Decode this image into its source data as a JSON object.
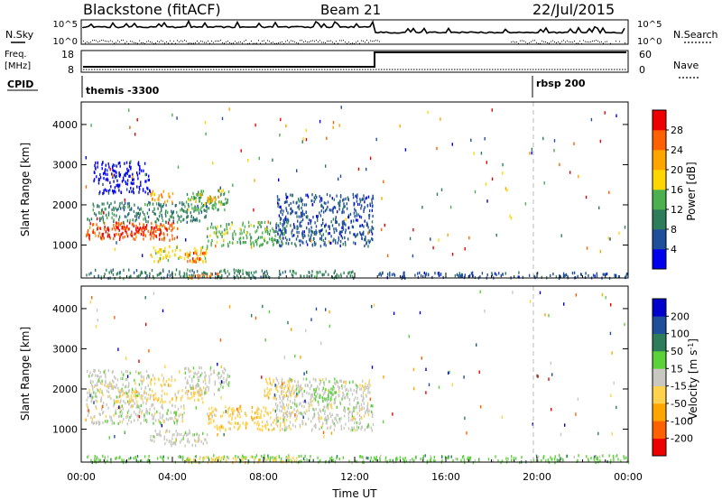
{
  "header": {
    "station": "Blackstone (fitACF)",
    "beam": "Beam 21",
    "date": "22/Jul/2015"
  },
  "panels": {
    "nsky_label": "N.Sky",
    "nsky_ticks": [
      "10^5",
      "10^0"
    ],
    "nsearch_label": "N.Search",
    "nsearch_ticks": [
      "10^5",
      "10^0"
    ],
    "freq_label_line1": "Freq.",
    "freq_label_line2": "[MHz]",
    "freq_ticks": [
      "18",
      "8"
    ],
    "nave_label": "Nave",
    "nave_ticks": [
      "60",
      "0"
    ],
    "cpid_label": "CPID",
    "cpid_modes": [
      {
        "name": "themis -3300",
        "start_hour": 0
      },
      {
        "name": "rbsp 200",
        "start_hour": 20
      }
    ]
  },
  "colors": {
    "power_scale": [
      "#0000ee",
      "#1f4e9a",
      "#2e7d5a",
      "#4caf50",
      "#ffd700",
      "#ffa500",
      "#ff6000",
      "#ee0000"
    ],
    "velocity_scale": [
      "#ee0000",
      "#ff6000",
      "#ffa500",
      "#ffd24d",
      "#c8c8c0",
      "#5bd13a",
      "#2e7d5a",
      "#1f4e9a",
      "#0000cc"
    ]
  },
  "chart_data": [
    {
      "type": "heatmap",
      "name": "power",
      "xlabel": "",
      "ylabel": "Slant Range [km]",
      "x_range_hours": [
        0,
        24
      ],
      "y_range_km": [
        180,
        4560
      ],
      "yticks": [
        1000,
        2000,
        3000,
        4000
      ],
      "colorbar_label": "Power [dB]",
      "colorbar_ticks": [
        "4",
        "8",
        "12",
        "16",
        "20",
        "24",
        "28"
      ],
      "regions": [
        {
          "t0": 0.2,
          "t1": 4.2,
          "r0": 1150,
          "r1": 1600,
          "level": 6
        },
        {
          "t0": 0.8,
          "t1": 3.8,
          "r0": 1250,
          "r1": 1500,
          "level": 7
        },
        {
          "t0": 0.2,
          "t1": 5.5,
          "r0": 1600,
          "r1": 2100,
          "level": 2
        },
        {
          "t0": 3.0,
          "t1": 4.0,
          "r0": 2100,
          "r1": 2400,
          "level": 5
        },
        {
          "t0": 4.5,
          "t1": 6.5,
          "r0": 1900,
          "r1": 2400,
          "level": 3
        },
        {
          "t0": 5.0,
          "t1": 6.0,
          "r0": 2100,
          "r1": 2300,
          "level": 5
        },
        {
          "t0": 5.5,
          "t1": 9.0,
          "r0": 1000,
          "r1": 1600,
          "level": 3
        },
        {
          "t0": 3.0,
          "t1": 5.5,
          "r0": 600,
          "r1": 1000,
          "level": 4
        },
        {
          "t0": 4.5,
          "t1": 5.5,
          "r0": 600,
          "r1": 850,
          "level": 6
        },
        {
          "t0": 8.5,
          "t1": 12.8,
          "r0": 1000,
          "r1": 2300,
          "level": 1
        },
        {
          "t0": 0.5,
          "t1": 3.0,
          "r0": 2300,
          "r1": 3100,
          "level": 0
        },
        {
          "t0": 0.2,
          "t1": 12.0,
          "r0": 200,
          "r1": 420,
          "level": 2
        },
        {
          "t0": 4.5,
          "t1": 6.0,
          "r0": 200,
          "r1": 320,
          "level": 6
        },
        {
          "t0": 13.0,
          "t1": 24.0,
          "r0": 200,
          "r1": 350,
          "level": 1
        }
      ]
    },
    {
      "type": "heatmap",
      "name": "velocity",
      "xlabel": "Time UT",
      "ylabel": "Slant Range [km]",
      "x_range_hours": [
        0,
        24
      ],
      "y_range_km": [
        180,
        4560
      ],
      "xticks": [
        "00:00",
        "04:00",
        "08:00",
        "12:00",
        "16:00",
        "20:00",
        "00:00"
      ],
      "yticks": [
        1000,
        2000,
        3000,
        4000
      ],
      "colorbar_label": "Velocity [m s^-1]",
      "colorbar_ticks": [
        "200",
        "100",
        "50",
        "15",
        "-15",
        "-50",
        "-100",
        "-200"
      ],
      "regions": [
        {
          "t0": 0.2,
          "t1": 4.5,
          "r0": 1150,
          "r1": 1650,
          "level": 4
        },
        {
          "t0": 0.2,
          "t1": 3.0,
          "r0": 1650,
          "r1": 2500,
          "level": 4
        },
        {
          "t0": 3.0,
          "t1": 4.0,
          "r0": 2100,
          "r1": 2400,
          "level": 3
        },
        {
          "t0": 1.5,
          "t1": 5.5,
          "r0": 1700,
          "r1": 2000,
          "level": 3
        },
        {
          "t0": 3.0,
          "t1": 5.5,
          "r0": 600,
          "r1": 1000,
          "level": 4
        },
        {
          "t0": 4.5,
          "t1": 6.5,
          "r0": 1900,
          "r1": 2600,
          "level": 4
        },
        {
          "t0": 5.5,
          "t1": 9.0,
          "r0": 1000,
          "r1": 1600,
          "level": 3
        },
        {
          "t0": 8.0,
          "t1": 9.5,
          "r0": 1800,
          "r1": 2300,
          "level": 3
        },
        {
          "t0": 8.5,
          "t1": 12.8,
          "r0": 1000,
          "r1": 2300,
          "level": 4
        },
        {
          "t0": 10.2,
          "t1": 11.3,
          "r0": 1700,
          "r1": 2100,
          "level": 5
        },
        {
          "t0": 0.2,
          "t1": 24.0,
          "r0": 200,
          "r1": 380,
          "level": 5
        },
        {
          "t0": 4.5,
          "t1": 9.5,
          "r0": 200,
          "r1": 350,
          "level": 3
        }
      ]
    }
  ]
}
